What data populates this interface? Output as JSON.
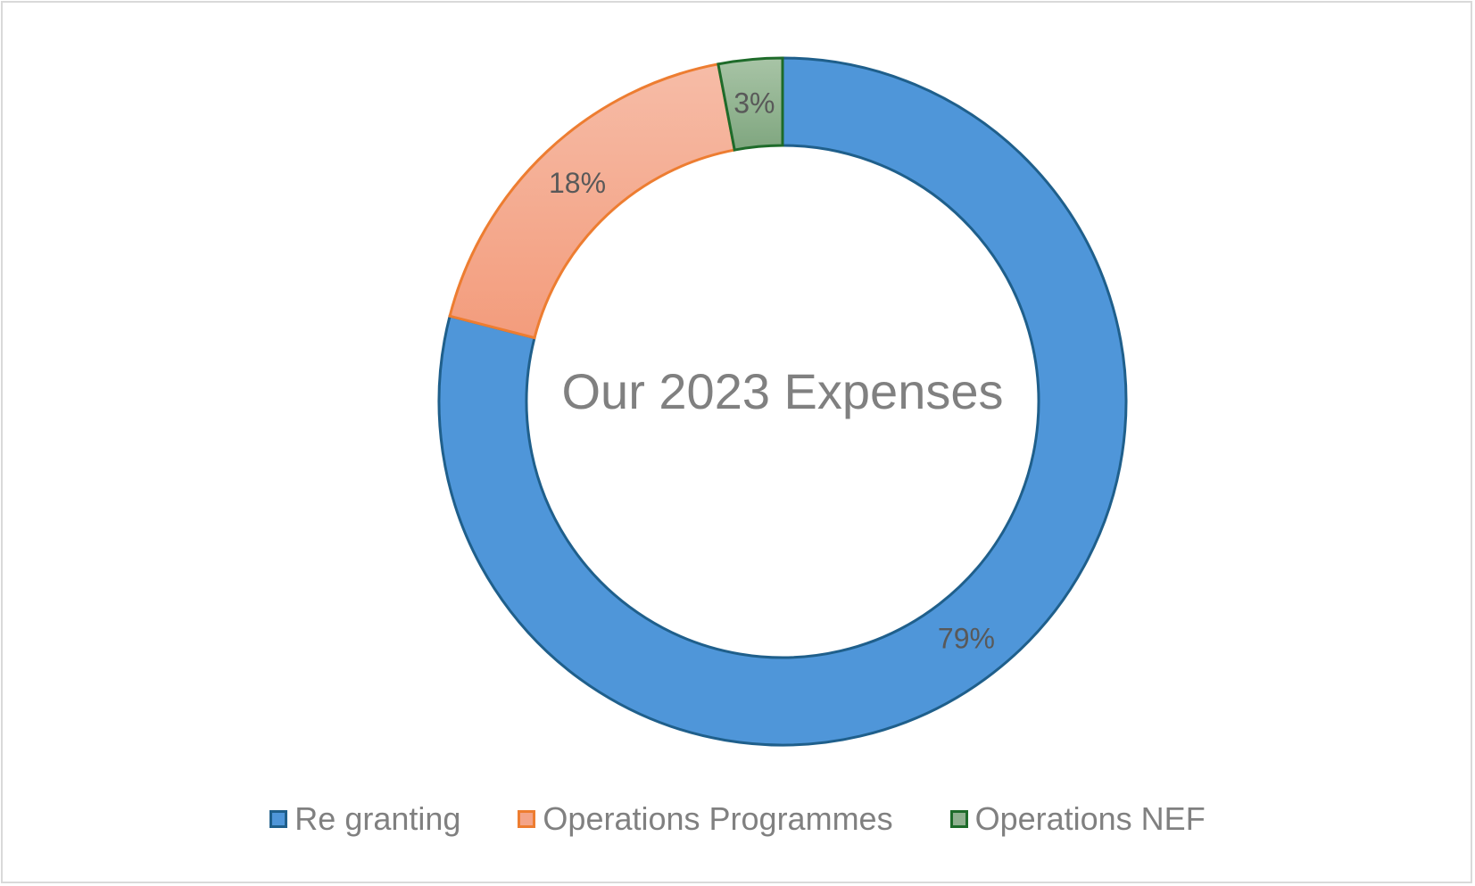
{
  "chart_data": {
    "type": "pie",
    "variant": "donut",
    "title": "Our 2023 Expenses",
    "title_position": "center",
    "categories": [
      "Re granting",
      "Operations Programmes",
      "Operations NEF"
    ],
    "values": [
      79,
      18,
      3
    ],
    "labels": [
      "79%",
      "18%",
      "3%"
    ],
    "unit": "%",
    "legend_position": "bottom",
    "colors": [
      {
        "fill": "#4f96d9",
        "stroke": "#1f5f8b"
      },
      {
        "fill": "#f4a488",
        "stroke": "#ed7d31"
      },
      {
        "fill": "#8fb08f",
        "stroke": "#1e6b2a"
      }
    ]
  }
}
